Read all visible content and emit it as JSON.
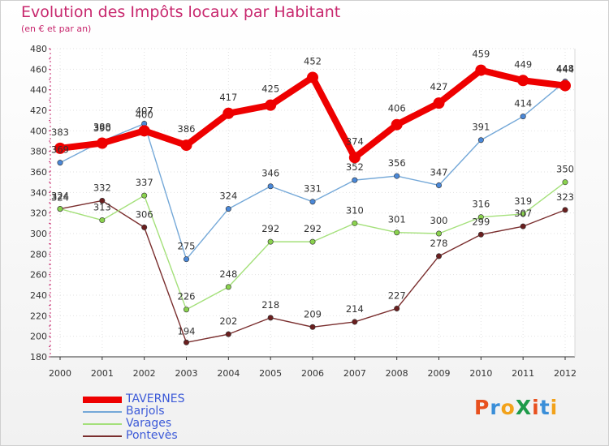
{
  "header": {
    "title": "Evolution des Impôts locaux par Habitant",
    "subtitle": "(en € et par an)"
  },
  "logo": {
    "text": "ProXiti",
    "colors": [
      "#e8501e",
      "#3a8ed8",
      "#f2a21a",
      "#1e9b4a",
      "#e8501e",
      "#3a8ed8",
      "#f2a21a"
    ]
  },
  "chart_data": {
    "type": "line",
    "title": "Evolution des Impôts locaux par Habitant",
    "subtitle": "(en € et par an)",
    "xlabel": "",
    "ylabel": "",
    "x": [
      "2000",
      "2001",
      "2002",
      "2003",
      "2004",
      "2005",
      "2006",
      "2007",
      "2008",
      "2009",
      "2010",
      "2011",
      "2012"
    ],
    "ylim": [
      180,
      480
    ],
    "yticks": [
      180,
      200,
      220,
      240,
      260,
      280,
      300,
      320,
      340,
      360,
      380,
      400,
      420,
      440,
      460,
      480
    ],
    "grid": true,
    "legend_position": "bottom-left",
    "series": [
      {
        "name": "TAVERNES",
        "color": "#ee0000",
        "marker_color": "#ee0000",
        "values": [
          383,
          388,
          400,
          386,
          417,
          425,
          452,
          374,
          406,
          427,
          459,
          449,
          444
        ]
      },
      {
        "name": "Barjols",
        "color": "#74a8d8",
        "marker_color": "#4a88d8",
        "values": [
          369,
          390,
          407,
          275,
          324,
          346,
          331,
          352,
          356,
          347,
          391,
          414,
          448
        ]
      },
      {
        "name": "Varages",
        "color": "#a4e07a",
        "marker_color": "#8ad24e",
        "values": [
          324,
          313,
          337,
          226,
          248,
          292,
          292,
          310,
          301,
          300,
          316,
          319,
          350
        ]
      },
      {
        "name": "Pontevès",
        "color": "#7a2e2e",
        "marker_color": "#6a1f1f",
        "values": [
          324,
          332,
          306,
          194,
          202,
          218,
          209,
          214,
          227,
          278,
          299,
          307,
          323
        ]
      }
    ]
  }
}
